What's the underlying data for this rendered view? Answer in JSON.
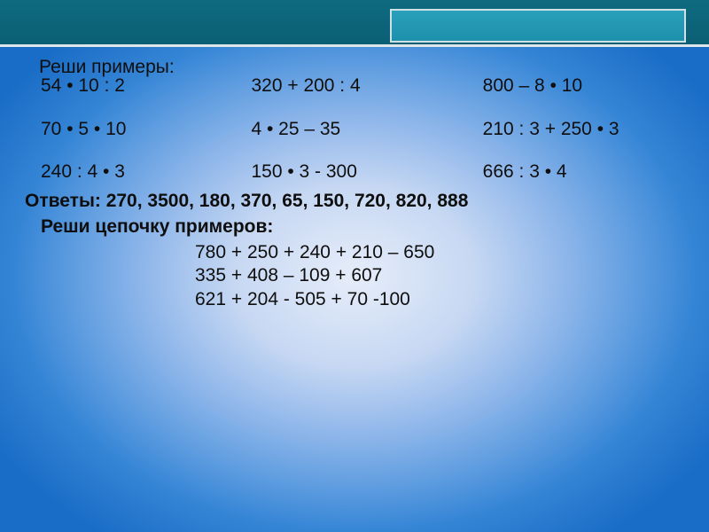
{
  "colors": {
    "topbar_bg_top": "#0e6a80",
    "topbar_bg_bottom": "#0b5f74",
    "topbar_border": "#dfe6ea",
    "accent_top": "#2aa0bb",
    "accent_bottom": "#1d90ac",
    "accent_border": "#cfe0e6",
    "text": "#0e0e0e",
    "bg_center": "#e6edf9",
    "bg_edge": "#1a6dc6"
  },
  "typography": {
    "family": "Verdana, Arial, sans-serif",
    "size": 21,
    "heading_weight": "normal",
    "answers_weight": "bold"
  },
  "heading1": "Реши примеры:",
  "col1": {
    "a": "54 • 10 : 2",
    "b": "70 • 5 • 10",
    "c": "240 : 4 • 3"
  },
  "col2": {
    "a": "320 + 200 : 4",
    "b": "4 • 25 – 35",
    "c": "150 • 3 - 300"
  },
  "col3": {
    "a": "800 – 8 • 10",
    "b": "210 : 3 + 250 • 3",
    "c": "666 : 3 • 4"
  },
  "answers_label": "Ответы: 270, 3500, 180, 370, 65, 150, 720, 820, 888",
  "heading2": "Реши цепочку примеров:",
  "chain": {
    "l1": "780 + 250 + 240 + 210 – 650",
    "l2": "335 + 408 – 109 + 607",
    "l3": "621 + 204 - 505 + 70 -100"
  }
}
